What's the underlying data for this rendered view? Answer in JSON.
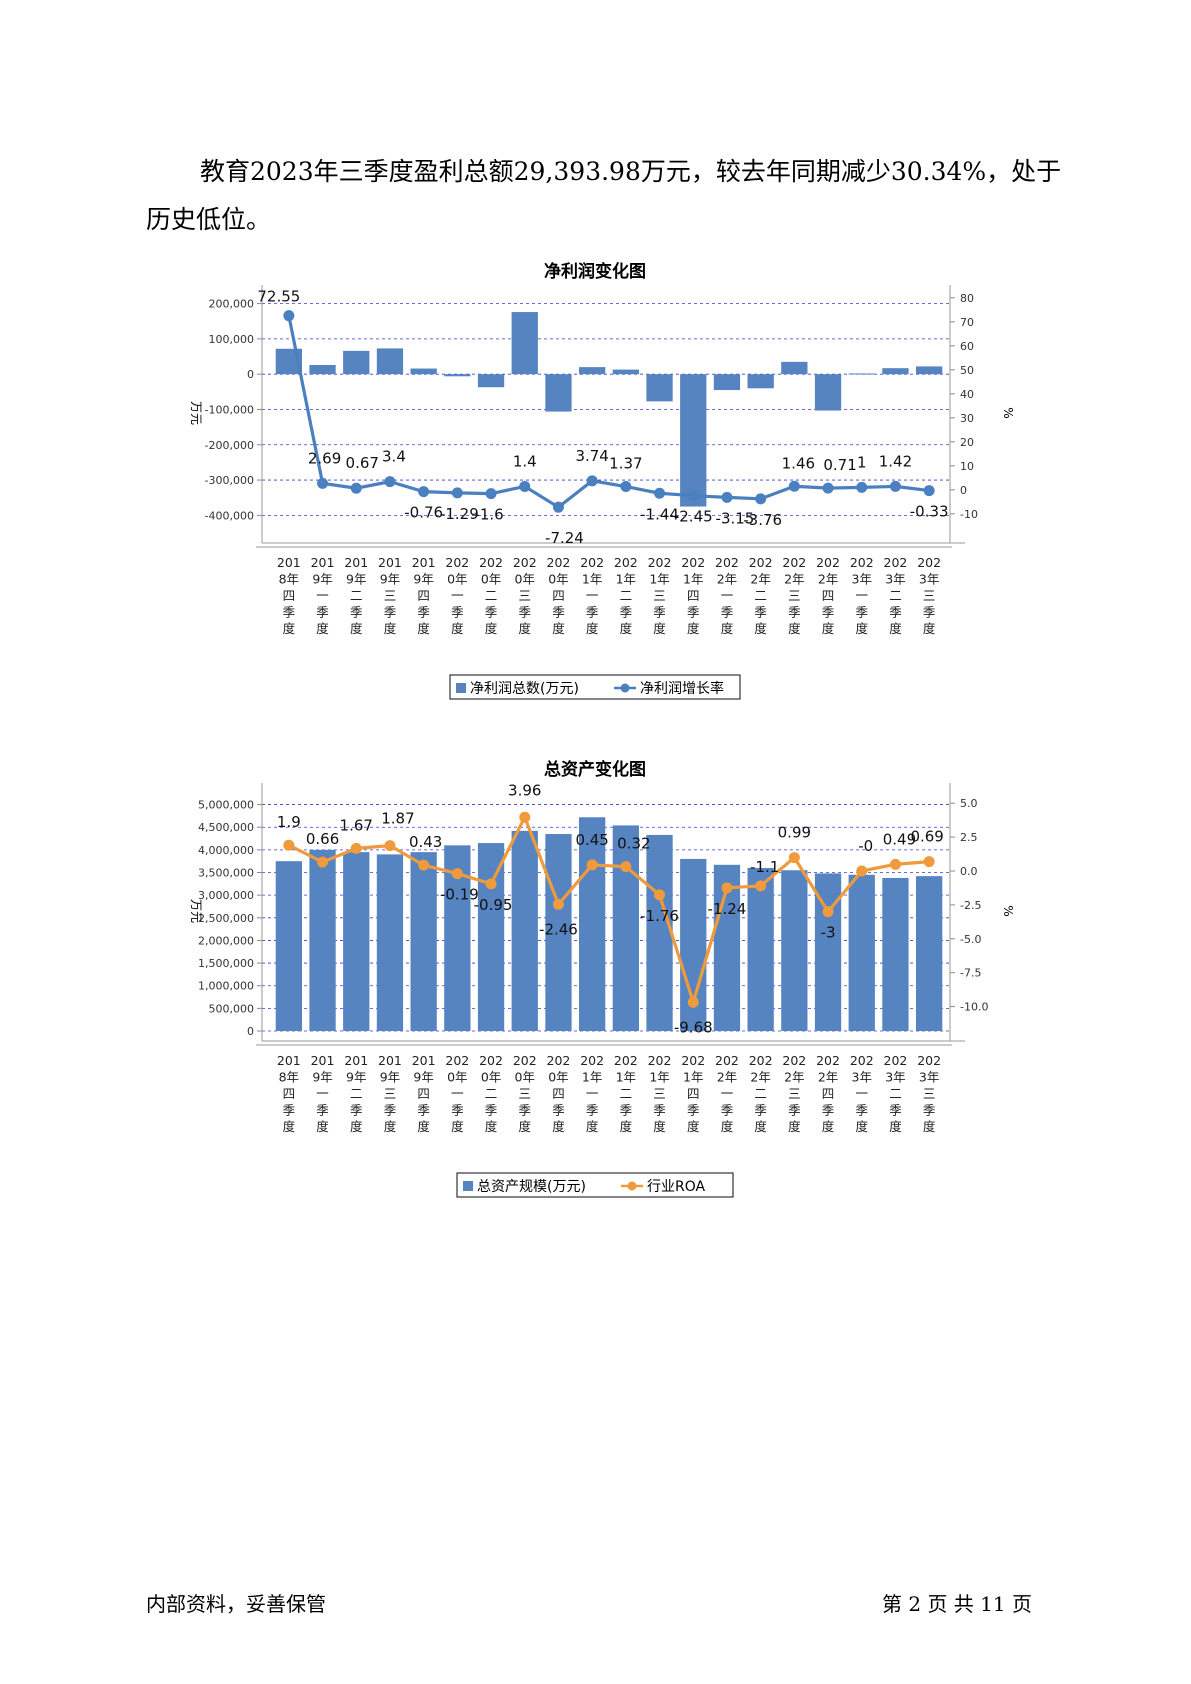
{
  "document": {
    "intro_text": "教育2023年三季度盈利总额29,393.98万元，较去年同期减少30.34%，处于历史低位。",
    "footer_left": "内部资料，妥善保管",
    "footer_right": "第 2 页  共 11 页"
  },
  "chart_data": [
    {
      "type": "bar",
      "title": "净利润变化图",
      "ylabel": "万元",
      "y2label": "%",
      "ylim": [
        -450000,
        230000
      ],
      "y2lim": [
        -18,
        82
      ],
      "yticks": [
        "200,000",
        "100,000",
        "0",
        "-100,000",
        "-200,000",
        "-300,000",
        "-400,000"
      ],
      "y2ticks": [
        "80",
        "70",
        "60",
        "50",
        "40",
        "30",
        "20",
        "10",
        "0",
        "-10"
      ],
      "categories": [
        "2018年四季度",
        "2019年一季度",
        "2019年二季度",
        "2019年三季度",
        "2019年四季度",
        "2020年一季度",
        "2020年二季度",
        "2020年三季度",
        "2020年四季度",
        "2021年一季度",
        "2021年二季度",
        "2021年三季度",
        "2021年四季度",
        "2022年一季度",
        "2022年二季度",
        "2022年三季度",
        "2022年四季度",
        "2023年一季度",
        "2023年二季度",
        "2023年三季度"
      ],
      "legend_position": "bottom",
      "grid": true,
      "series": [
        {
          "name": "净利润总数(万元)",
          "kind": "bar",
          "axis": "left",
          "color": "#5584c0",
          "values": [
            72000,
            26000,
            66000,
            73000,
            16000,
            -6000,
            -37000,
            176000,
            -106000,
            20000,
            13000,
            -77000,
            -375000,
            -45000,
            -40000,
            35000,
            -103000,
            2000,
            17000,
            22000
          ]
        },
        {
          "name": "净利润增长率",
          "kind": "line",
          "axis": "right",
          "color": "#4a7fc0",
          "values": [
            72.55,
            2.69,
            0.67,
            3.4,
            -0.76,
            -1.29,
            -1.6,
            1.4,
            -7.24,
            3.74,
            1.37,
            -1.44,
            -2.45,
            -3.15,
            -3.76,
            1.46,
            0.71,
            1,
            1.42,
            -0.33
          ],
          "labels": [
            "72.55",
            "2.69",
            "0.67",
            "3.4",
            "-0.76",
            "-1.29",
            "-1.6",
            "1.4",
            "-7.24",
            "3.74",
            "1.37",
            "-1.44",
            "-2.45",
            "-3.15",
            "-3.76",
            "1.46",
            "0.71",
            "1",
            "1.42",
            "-0.33"
          ]
        }
      ]
    },
    {
      "type": "bar",
      "title": "总资产变化图",
      "ylabel": "万元",
      "y2label": "%",
      "ylim": [
        0,
        5300000
      ],
      "y2lim": [
        -11.8,
        5.9
      ],
      "yticks": [
        "5,000,000",
        "4,500,000",
        "4,000,000",
        "3,500,000",
        "3,000,000",
        "2,500,000",
        "2,000,000",
        "1,500,000",
        "1,000,000",
        "500,000",
        "0"
      ],
      "y2ticks": [
        "5.0",
        "2.5",
        "0.0",
        "-2.5",
        "-5.0",
        "-7.5",
        "-10.0"
      ],
      "categories": [
        "2018年四季度",
        "2019年一季度",
        "2019年二季度",
        "2019年三季度",
        "2019年四季度",
        "2020年一季度",
        "2020年二季度",
        "2020年三季度",
        "2020年四季度",
        "2021年一季度",
        "2021年二季度",
        "2021年三季度",
        "2021年四季度",
        "2022年一季度",
        "2022年二季度",
        "2022年三季度",
        "2022年四季度",
        "2023年一季度",
        "2023年二季度",
        "2023年三季度"
      ],
      "legend_position": "bottom",
      "grid": true,
      "series": [
        {
          "name": "总资产规模(万元)",
          "kind": "bar",
          "axis": "left",
          "color": "#5584c0",
          "values": [
            3750000,
            4000000,
            3950000,
            3900000,
            3950000,
            4100000,
            4150000,
            4420000,
            4350000,
            4720000,
            4540000,
            4330000,
            3800000,
            3670000,
            3600000,
            3550000,
            3480000,
            3450000,
            3380000,
            3420000
          ]
        },
        {
          "name": "行业ROA",
          "kind": "line",
          "axis": "right",
          "color": "#ef9a3c",
          "values": [
            1.9,
            0.66,
            1.67,
            1.87,
            0.43,
            -0.19,
            -0.95,
            3.96,
            -2.46,
            0.45,
            0.32,
            -1.76,
            -9.68,
            -1.24,
            -1.1,
            0.99,
            -3,
            0,
            0.49,
            0.69
          ],
          "labels": [
            "1.9",
            "0.66",
            "1.67",
            "1.87",
            "0.43",
            "-0.19",
            "-0.95",
            "3.96",
            "-2.46",
            "0.45",
            "0.32",
            "-1.76",
            "-9.68",
            "-1.24",
            "-1.1",
            "0.99",
            "-3",
            "-0",
            "0.49",
            "0.69"
          ]
        }
      ]
    }
  ]
}
